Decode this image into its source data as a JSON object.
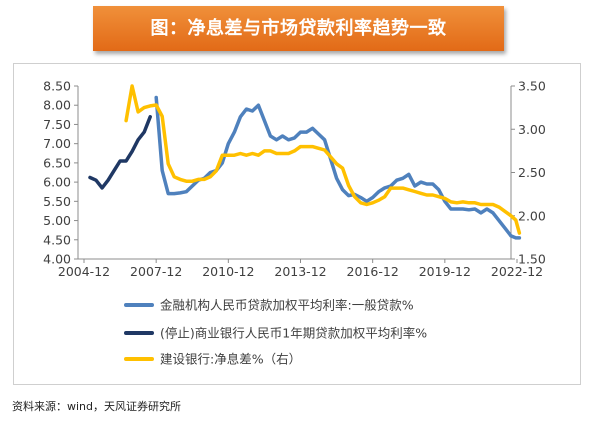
{
  "title": "图：净息差与市场贷款利率趋势一致",
  "source": "资料来源：wind，天风证券研究所",
  "chart_data": {
    "type": "line",
    "left_axis": {
      "range": [
        4.0,
        8.5
      ],
      "ticks": [
        "8.50",
        "8.00",
        "7.50",
        "7.00",
        "6.50",
        "6.00",
        "5.50",
        "5.00",
        "4.50",
        "4.00"
      ]
    },
    "right_axis": {
      "range": [
        1.5,
        3.5
      ],
      "ticks": [
        "3.50",
        "3.00",
        "2.50",
        "2.00",
        "1.50"
      ]
    },
    "x_axis": {
      "range": [
        2004.75,
        2022.75
      ],
      "ticks": [
        "2004-12",
        "2007-12",
        "2010-12",
        "2013-12",
        "2016-12",
        "2019-12",
        "2022-12"
      ]
    },
    "legend": {
      "position": "bottom"
    },
    "series": [
      {
        "name": "金融机构人民币贷款加权平均利率:一般贷款%",
        "axis": "left",
        "color": "#4f81bd",
        "points": [
          [
            2008.0,
            8.2
          ],
          [
            2008.25,
            6.3
          ],
          [
            2008.5,
            5.7
          ],
          [
            2008.75,
            5.7
          ],
          [
            2009.0,
            5.72
          ],
          [
            2009.25,
            5.75
          ],
          [
            2009.5,
            5.9
          ],
          [
            2009.75,
            6.05
          ],
          [
            2010.0,
            6.1
          ],
          [
            2010.25,
            6.25
          ],
          [
            2010.5,
            6.3
          ],
          [
            2010.75,
            6.5
          ],
          [
            2011.0,
            7.0
          ],
          [
            2011.25,
            7.3
          ],
          [
            2011.5,
            7.7
          ],
          [
            2011.75,
            7.9
          ],
          [
            2012.0,
            7.85
          ],
          [
            2012.25,
            8.0
          ],
          [
            2012.5,
            7.6
          ],
          [
            2012.75,
            7.2
          ],
          [
            2013.0,
            7.1
          ],
          [
            2013.25,
            7.2
          ],
          [
            2013.5,
            7.1
          ],
          [
            2013.75,
            7.15
          ],
          [
            2014.0,
            7.3
          ],
          [
            2014.25,
            7.3
          ],
          [
            2014.5,
            7.4
          ],
          [
            2014.75,
            7.25
          ],
          [
            2015.0,
            7.1
          ],
          [
            2015.25,
            6.6
          ],
          [
            2015.5,
            6.1
          ],
          [
            2015.75,
            5.8
          ],
          [
            2016.0,
            5.65
          ],
          [
            2016.25,
            5.68
          ],
          [
            2016.5,
            5.6
          ],
          [
            2016.75,
            5.5
          ],
          [
            2017.0,
            5.6
          ],
          [
            2017.25,
            5.75
          ],
          [
            2017.5,
            5.85
          ],
          [
            2017.75,
            5.9
          ],
          [
            2018.0,
            6.05
          ],
          [
            2018.25,
            6.1
          ],
          [
            2018.5,
            6.2
          ],
          [
            2018.75,
            5.9
          ],
          [
            2019.0,
            6.0
          ],
          [
            2019.25,
            5.95
          ],
          [
            2019.5,
            5.95
          ],
          [
            2019.75,
            5.8
          ],
          [
            2020.0,
            5.5
          ],
          [
            2020.25,
            5.3
          ],
          [
            2020.5,
            5.3
          ],
          [
            2020.75,
            5.3
          ],
          [
            2021.0,
            5.28
          ],
          [
            2021.25,
            5.3
          ],
          [
            2021.5,
            5.2
          ],
          [
            2021.75,
            5.3
          ],
          [
            2022.0,
            5.2
          ],
          [
            2022.25,
            5.0
          ],
          [
            2022.5,
            4.8
          ],
          [
            2022.75,
            4.6
          ],
          [
            2022.95,
            4.55
          ],
          [
            2023.1,
            4.55
          ]
        ]
      },
      {
        "name": "(停止)商业银行人民币1年期贷款加权平均利率%",
        "axis": "left",
        "color": "#1f3864",
        "points": [
          [
            2005.25,
            6.12
          ],
          [
            2005.5,
            6.05
          ],
          [
            2005.75,
            5.85
          ],
          [
            2006.0,
            6.05
          ],
          [
            2006.25,
            6.3
          ],
          [
            2006.5,
            6.55
          ],
          [
            2006.75,
            6.55
          ],
          [
            2007.0,
            6.8
          ],
          [
            2007.25,
            7.1
          ],
          [
            2007.5,
            7.3
          ],
          [
            2007.75,
            7.7
          ]
        ]
      },
      {
        "name": "建设银行:净息差%（右）",
        "axis": "right",
        "color": "#ffc000",
        "points": [
          [
            2006.75,
            3.1
          ],
          [
            2007.0,
            3.5
          ],
          [
            2007.25,
            3.2
          ],
          [
            2007.5,
            3.25
          ],
          [
            2007.75,
            3.27
          ],
          [
            2008.0,
            3.28
          ],
          [
            2008.25,
            3.15
          ],
          [
            2008.5,
            2.6
          ],
          [
            2008.75,
            2.45
          ],
          [
            2009.0,
            2.42
          ],
          [
            2009.25,
            2.4
          ],
          [
            2009.5,
            2.4
          ],
          [
            2009.75,
            2.42
          ],
          [
            2010.0,
            2.42
          ],
          [
            2010.25,
            2.45
          ],
          [
            2010.5,
            2.52
          ],
          [
            2010.75,
            2.7
          ],
          [
            2011.0,
            2.7
          ],
          [
            2011.25,
            2.7
          ],
          [
            2011.5,
            2.72
          ],
          [
            2011.75,
            2.7
          ],
          [
            2012.0,
            2.72
          ],
          [
            2012.25,
            2.7
          ],
          [
            2012.5,
            2.75
          ],
          [
            2012.75,
            2.75
          ],
          [
            2013.0,
            2.72
          ],
          [
            2013.25,
            2.72
          ],
          [
            2013.5,
            2.72
          ],
          [
            2013.75,
            2.75
          ],
          [
            2014.0,
            2.8
          ],
          [
            2014.25,
            2.8
          ],
          [
            2014.5,
            2.8
          ],
          [
            2014.75,
            2.78
          ],
          [
            2015.0,
            2.76
          ],
          [
            2015.25,
            2.68
          ],
          [
            2015.5,
            2.6
          ],
          [
            2015.75,
            2.55
          ],
          [
            2016.0,
            2.35
          ],
          [
            2016.25,
            2.22
          ],
          [
            2016.5,
            2.15
          ],
          [
            2016.75,
            2.13
          ],
          [
            2017.0,
            2.15
          ],
          [
            2017.25,
            2.18
          ],
          [
            2017.5,
            2.22
          ],
          [
            2017.75,
            2.32
          ],
          [
            2018.0,
            2.32
          ],
          [
            2018.25,
            2.32
          ],
          [
            2018.5,
            2.3
          ],
          [
            2018.75,
            2.28
          ],
          [
            2019.0,
            2.26
          ],
          [
            2019.25,
            2.24
          ],
          [
            2019.5,
            2.24
          ],
          [
            2019.75,
            2.22
          ],
          [
            2020.0,
            2.2
          ],
          [
            2020.25,
            2.16
          ],
          [
            2020.5,
            2.15
          ],
          [
            2020.75,
            2.16
          ],
          [
            2021.0,
            2.15
          ],
          [
            2021.25,
            2.15
          ],
          [
            2021.5,
            2.13
          ],
          [
            2021.75,
            2.13
          ],
          [
            2022.0,
            2.13
          ],
          [
            2022.25,
            2.1
          ],
          [
            2022.5,
            2.05
          ],
          [
            2022.75,
            2.0
          ],
          [
            2022.95,
            1.95
          ],
          [
            2023.1,
            1.8
          ]
        ]
      }
    ]
  }
}
